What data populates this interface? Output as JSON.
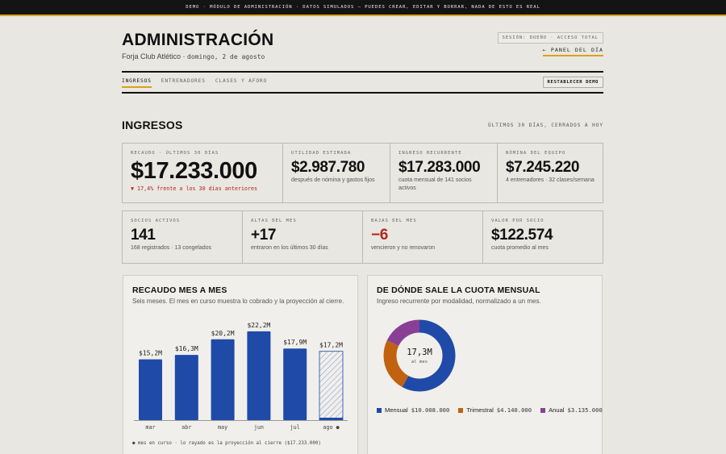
{
  "banner": "DEMO · MÓDULO DE ADMINISTRACIÓN · DATOS SIMULADOS — PUEDES CREAR, EDITAR Y BORRAR, NADA DE ESTO ES REAL",
  "header": {
    "title": "ADMINISTRACIÓN",
    "club": "Forja Club Atlético ·",
    "date": "domingo, 2 de agosto",
    "session": "SESIÓN: DUEÑO · ACCESO TOTAL",
    "panel_link": "← PANEL DEL DÍA"
  },
  "tabs": [
    {
      "label": "INGRESOS",
      "active": true
    },
    {
      "label": "ENTRENADORES",
      "active": false
    },
    {
      "label": "CLASES Y AFORO",
      "active": false
    }
  ],
  "reset_label": "RESTABLECER DEMO",
  "section": {
    "title": "INGRESOS",
    "note": "ÚLTIMOS 30 DÍAS, CERRADOS A HOY"
  },
  "kpis_top": [
    {
      "label": "RECAUDO · ÚLTIMOS 30 DÍAS",
      "value": "$17.233.000",
      "delta": "▼ 17,4% frente a los 30 días anteriores"
    },
    {
      "label": "UTILIDAD ESTIMADA",
      "value": "$2.987.780",
      "sub": "después de nómina y gastos fijos"
    },
    {
      "label": "INGRESO RECURRENTE",
      "value": "$17.283.000",
      "sub": "cuota mensual de 141 socios activos"
    },
    {
      "label": "NÓMINA DEL EQUIPO",
      "value": "$7.245.220",
      "sub": "4 entrenadores · 32 clases/semana"
    }
  ],
  "kpis_bottom": [
    {
      "label": "SOCIOS ACTIVOS",
      "value": "141",
      "sub": "168 registrados · 13 congelados"
    },
    {
      "label": "ALTAS DEL MES",
      "value": "+17",
      "sub": "entraron en los últimos 30 días"
    },
    {
      "label": "BAJAS DEL MES",
      "value": "−6",
      "sub": "vencieron y no renovaron"
    },
    {
      "label": "VALOR POR SOCIO",
      "value": "$122.574",
      "sub": "cuota promedio al mes"
    }
  ],
  "bar_card": {
    "title": "RECAUDO MES A MES",
    "subtitle": "Seis meses. El mes en curso muestra lo cobrado y la proyección al cierre.",
    "note": "● mes en curso · lo rayado es la proyección al cierre ($17.233.000)"
  },
  "donut_card": {
    "title": "DE DÓNDE SALE LA CUOTA MENSUAL",
    "subtitle": "Ingreso recurrente por modalidad, normalizado a un mes.",
    "center_value": "17,3M",
    "center_label": "al mes"
  },
  "colors": {
    "accent": "#d9a21b",
    "bar": "#1f4aa8",
    "negative": "#b3261e",
    "mensual": "#1f4aa8",
    "trimestral": "#c0620f",
    "anual": "#8a3f96"
  },
  "chart_data": [
    {
      "type": "bar",
      "categories": [
        "mar",
        "abr",
        "may",
        "jun",
        "jul",
        "ago ●"
      ],
      "values": [
        15.2,
        16.3,
        20.2,
        22.2,
        17.9,
        0.6
      ],
      "projection": [
        null,
        null,
        null,
        null,
        null,
        17.2
      ],
      "labels": [
        "$15,2M",
        "$16,3M",
        "$20,2M",
        "$22,2M",
        "$17,9M",
        "$17,2M"
      ],
      "ylim": [
        0,
        25
      ]
    },
    {
      "type": "pie",
      "series": [
        {
          "name": "Mensual",
          "value": 10008000,
          "label": "$10.008.000"
        },
        {
          "name": "Trimestral",
          "value": 4140000,
          "label": "$4.140.000"
        },
        {
          "name": "Anual",
          "value": 3135000,
          "label": "$3.135.000"
        }
      ]
    }
  ]
}
